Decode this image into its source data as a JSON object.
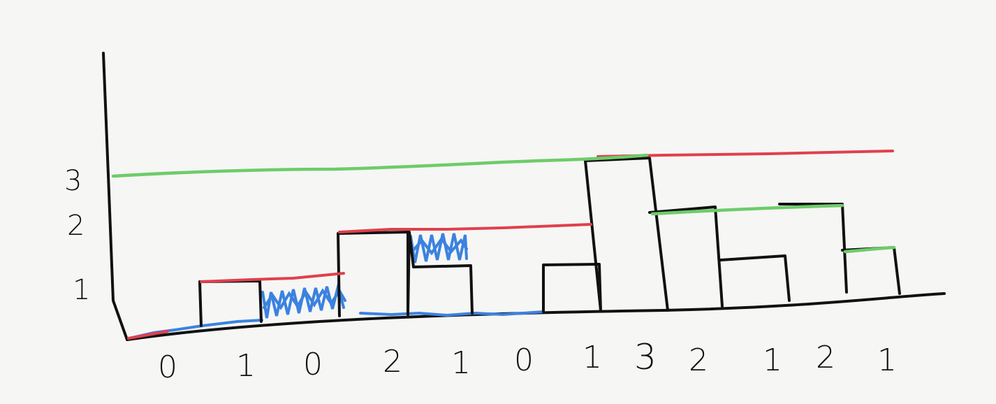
{
  "diagram": {
    "y_tick_labels": [
      "1",
      "2",
      "3"
    ],
    "x_tick_labels": [
      "0",
      "1",
      "0",
      "2",
      "1",
      "0",
      "1",
      "3",
      "2",
      "1",
      "2",
      "1"
    ],
    "heights": [
      0,
      1,
      0,
      2,
      1,
      0,
      1,
      3,
      2,
      1,
      2,
      1
    ],
    "colors": {
      "axis": "#111111",
      "bar_outline": "#111111",
      "left_max": "#e0404c",
      "right_max": "#6dcc6a",
      "water": "#3b82e0"
    }
  }
}
